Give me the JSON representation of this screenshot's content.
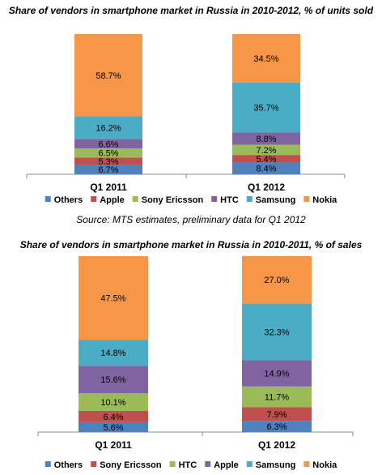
{
  "chart_data": [
    {
      "type": "bar",
      "stacked": true,
      "title": "Share of vendors in smartphone market in Russia in 2010-2012, % of units sold",
      "categories": [
        "Q1 2011",
        "Q1 2012"
      ],
      "ylim": [
        0,
        100
      ],
      "grid": false,
      "legend_position": "bottom",
      "series": [
        {
          "name": "Others",
          "color": "#4f81bd",
          "values": [
            6.7,
            8.4
          ],
          "labels": [
            "6.7%",
            "8.4%"
          ]
        },
        {
          "name": "Apple",
          "color": "#c0504d",
          "values": [
            5.3,
            5.4
          ],
          "labels": [
            "5.3%",
            "5.4%"
          ]
        },
        {
          "name": "Sony Ericsson",
          "color": "#9bbb59",
          "values": [
            6.5,
            7.2
          ],
          "labels": [
            "6.5%",
            "7.2%"
          ]
        },
        {
          "name": "HTC",
          "color": "#8064a2",
          "values": [
            6.6,
            8.8
          ],
          "labels": [
            "6.6%",
            "8.8%"
          ]
        },
        {
          "name": "Samsung",
          "color": "#4bacc6",
          "values": [
            16.2,
            35.7
          ],
          "labels": [
            "16.2%",
            "35.7%"
          ]
        },
        {
          "name": "Nokia",
          "color": "#f79646",
          "values": [
            58.7,
            34.5
          ],
          "labels": [
            "58.7%",
            "34.5%"
          ]
        }
      ],
      "source": "Source: MTS estimates, preliminary data for Q1 2012"
    },
    {
      "type": "bar",
      "stacked": true,
      "title": "Share of vendors in smartphone market in Russia in 2010-2011, % of sales",
      "categories": [
        "Q1 2011",
        "Q1 2012"
      ],
      "ylim": [
        0,
        100
      ],
      "grid": false,
      "legend_position": "bottom",
      "series": [
        {
          "name": "Others",
          "color": "#4f81bd",
          "values": [
            5.6,
            6.3
          ],
          "labels": [
            "5.6%",
            "6.3%"
          ]
        },
        {
          "name": "Sony Ericsson",
          "color": "#c0504d",
          "values": [
            6.4,
            7.9
          ],
          "labels": [
            "6.4%",
            "7.9%"
          ]
        },
        {
          "name": "HTC",
          "color": "#9bbb59",
          "values": [
            10.1,
            11.7
          ],
          "labels": [
            "10.1%",
            "11.7%"
          ]
        },
        {
          "name": "Apple",
          "color": "#8064a2",
          "values": [
            15.6,
            14.9
          ],
          "labels": [
            "15.6%",
            "14.9%"
          ]
        },
        {
          "name": "Samsung",
          "color": "#4bacc6",
          "values": [
            14.8,
            32.3
          ],
          "labels": [
            "14.8%",
            "32.3%"
          ]
        },
        {
          "name": "Nokia",
          "color": "#f79646",
          "values": [
            47.5,
            27.0
          ],
          "labels": [
            "47.5%",
            "27.0%"
          ]
        }
      ]
    }
  ]
}
